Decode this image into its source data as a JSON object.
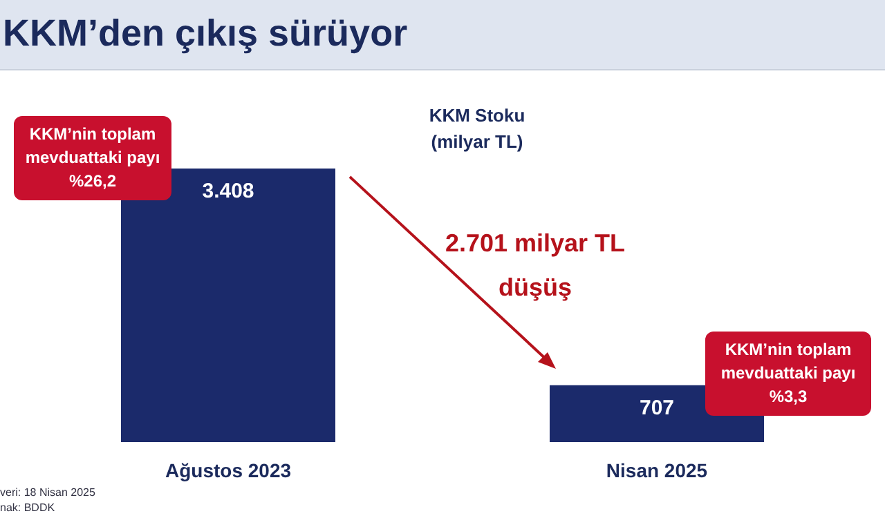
{
  "chart_data": {
    "type": "bar",
    "title": "KKM’den çıkış sürüyor",
    "subtitle": "KKM Stoku (milyar TL)",
    "categories": [
      "Ağustos 2023",
      "Nisan 2025"
    ],
    "values": [
      3408,
      707
    ],
    "color": "#1b2a6b",
    "value_labels": [
      "3.408",
      "707"
    ],
    "annotations": [
      "KKM’nin toplam mevduattaki payı %26,2",
      "2.701 milyar TL düşüş",
      "KKM’nin toplam mevduattaki payı %3,3",
      "veri: 18 Nisan 2025",
      "nak: BDDK"
    ]
  }
}
